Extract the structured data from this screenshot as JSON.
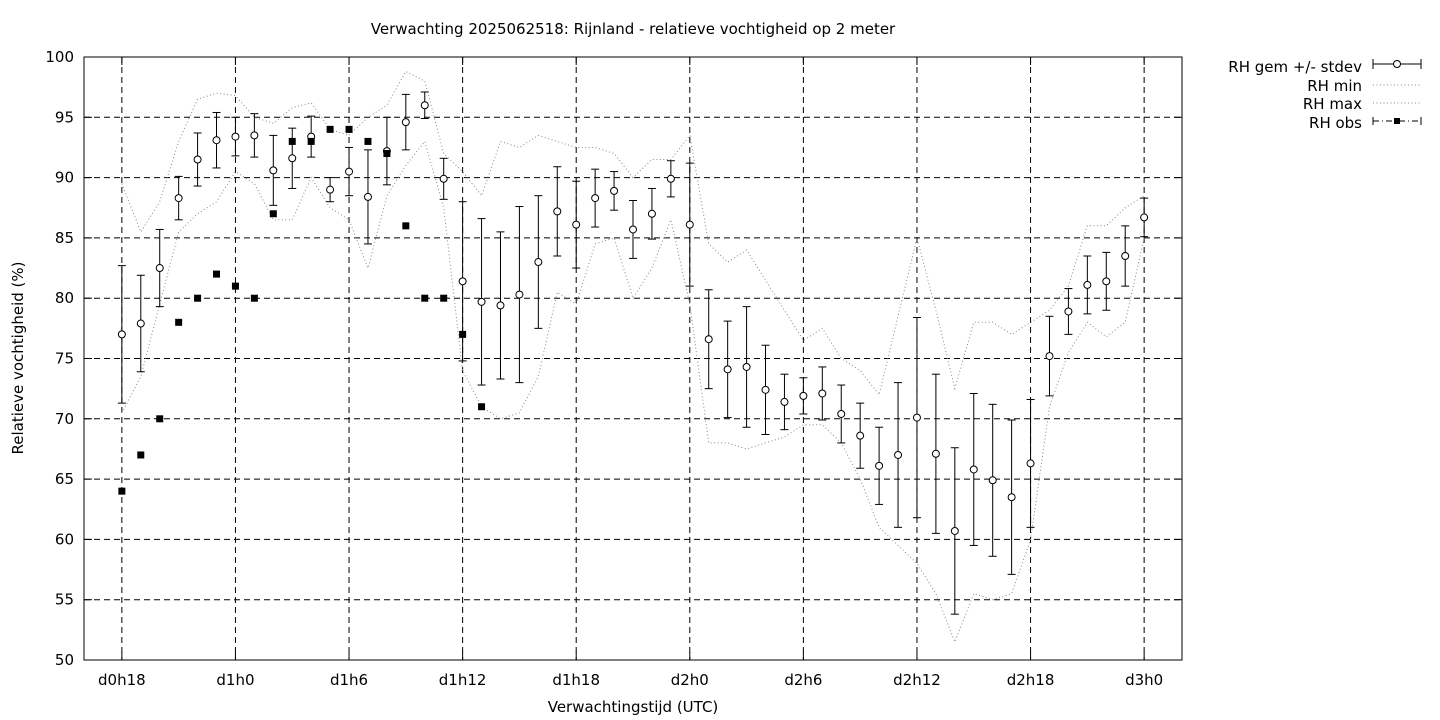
{
  "chart_data": {
    "type": "line",
    "title": "Verwachting 2025062518: Rijnland - relatieve vochtigheid op 2 meter",
    "xlabel": "Verwachtingstijd (UTC)",
    "ylabel": "Relatieve vochtigheid (%)",
    "xlim": [
      16,
      74
    ],
    "ylim": [
      50,
      100
    ],
    "grid": true,
    "legend_position": "top-right outside",
    "x_ticks": [
      {
        "value": 18,
        "label": "d0h18"
      },
      {
        "value": 24,
        "label": "d1h0"
      },
      {
        "value": 30,
        "label": "d1h6"
      },
      {
        "value": 36,
        "label": "d1h12"
      },
      {
        "value": 42,
        "label": "d1h18"
      },
      {
        "value": 48,
        "label": "d2h0"
      },
      {
        "value": 54,
        "label": "d2h6"
      },
      {
        "value": 60,
        "label": "d2h12"
      },
      {
        "value": 66,
        "label": "d2h18"
      },
      {
        "value": 72,
        "label": "d3h0"
      }
    ],
    "y_ticks": [
      50,
      55,
      60,
      65,
      70,
      75,
      80,
      85,
      90,
      95,
      100
    ],
    "series": [
      {
        "name": "RH gem +/- stdev",
        "style": "errorbars-circles",
        "x": [
          18,
          19,
          20,
          21,
          22,
          23,
          24,
          25,
          26,
          27,
          28,
          29,
          30,
          31,
          32,
          33,
          34,
          35,
          36,
          37,
          38,
          39,
          40,
          41,
          42,
          43,
          44,
          45,
          46,
          47,
          48,
          49,
          50,
          51,
          52,
          53,
          54,
          55,
          56,
          57,
          58,
          59,
          60,
          61,
          62,
          63,
          64,
          65,
          66,
          67,
          68,
          69,
          70,
          71,
          72
        ],
        "values": [
          77.0,
          77.9,
          82.5,
          88.3,
          91.5,
          93.1,
          93.4,
          93.5,
          90.6,
          91.6,
          93.4,
          89.0,
          90.5,
          88.4,
          92.2,
          94.6,
          96.0,
          89.9,
          81.4,
          79.7,
          79.4,
          80.3,
          83.0,
          87.2,
          86.1,
          88.3,
          88.9,
          85.7,
          87.0,
          89.9,
          86.1,
          76.6,
          74.1,
          74.3,
          72.4,
          71.4,
          71.9,
          72.1,
          70.4,
          68.6,
          66.1,
          67.0,
          70.1,
          67.1,
          60.7,
          65.8,
          64.9,
          63.5,
          66.3,
          75.2,
          78.9,
          81.1,
          81.4,
          83.5,
          86.7
        ],
        "stdev": [
          5.7,
          4.0,
          3.2,
          1.8,
          2.2,
          2.3,
          1.6,
          1.8,
          2.9,
          2.5,
          1.7,
          1.0,
          2.0,
          3.9,
          2.8,
          2.3,
          1.1,
          1.7,
          6.6,
          6.9,
          6.1,
          7.3,
          5.5,
          3.7,
          3.6,
          2.4,
          1.6,
          2.4,
          2.1,
          1.5,
          5.1,
          4.1,
          4.0,
          5.0,
          3.7,
          2.3,
          1.5,
          2.2,
          2.4,
          2.7,
          3.2,
          6.0,
          8.3,
          6.6,
          6.9,
          6.3,
          6.3,
          6.4,
          5.3,
          3.3,
          1.9,
          2.4,
          2.4,
          2.5,
          1.6
        ]
      },
      {
        "name": "RH min",
        "style": "dotted",
        "x": [
          18,
          19,
          20,
          21,
          22,
          23,
          24,
          25,
          26,
          27,
          28,
          29,
          30,
          31,
          32,
          33,
          34,
          35,
          36,
          37,
          38,
          39,
          40,
          41,
          42,
          43,
          44,
          45,
          46,
          47,
          48,
          49,
          50,
          51,
          52,
          53,
          54,
          55,
          56,
          57,
          58,
          59,
          60,
          61,
          62,
          63,
          64,
          65,
          66,
          67,
          68,
          69,
          70,
          71,
          72
        ],
        "values": [
          70.5,
          73.5,
          79.5,
          85.5,
          87.0,
          88.0,
          90.5,
          89.5,
          86.5,
          86.5,
          90.0,
          87.5,
          86.5,
          82.5,
          88.5,
          91.0,
          93.0,
          87.5,
          74.0,
          71.0,
          70.0,
          70.5,
          73.5,
          80.5,
          79.5,
          84.5,
          85.0,
          80.0,
          82.5,
          86.5,
          79.5,
          68.0,
          68.0,
          67.5,
          68.0,
          68.5,
          69.5,
          69.5,
          68.0,
          65.0,
          61.0,
          59.5,
          58.0,
          55.5,
          51.5,
          55.5,
          55.0,
          55.5,
          60.0,
          71.0,
          75.5,
          78.0,
          76.8,
          78.0,
          85.0
        ]
      },
      {
        "name": "RH max",
        "style": "dotted",
        "x": [
          18,
          19,
          20,
          21,
          22,
          23,
          24,
          25,
          26,
          27,
          28,
          29,
          30,
          31,
          32,
          33,
          34,
          35,
          36,
          37,
          38,
          39,
          40,
          41,
          42,
          43,
          44,
          45,
          46,
          47,
          48,
          49,
          50,
          51,
          52,
          53,
          54,
          55,
          56,
          57,
          58,
          59,
          60,
          61,
          62,
          63,
          64,
          65,
          66,
          67,
          68,
          69,
          70,
          71,
          72
        ],
        "values": [
          89.5,
          85.5,
          88.0,
          93.0,
          96.5,
          97.0,
          96.8,
          95.0,
          94.5,
          95.8,
          96.2,
          94.0,
          93.5,
          95.0,
          96.0,
          98.8,
          98.0,
          92.0,
          90.5,
          88.5,
          93.0,
          92.5,
          93.5,
          93.0,
          92.5,
          92.5,
          92.0,
          90.0,
          91.5,
          91.5,
          93.5,
          84.5,
          83.0,
          84.0,
          81.5,
          79.0,
          76.5,
          77.5,
          75.0,
          74.0,
          72.0,
          78.5,
          85.0,
          79.0,
          72.5,
          78.0,
          78.0,
          77.0,
          78.0,
          79.0,
          81.0,
          86.0,
          86.0,
          87.5,
          88.5
        ]
      },
      {
        "name": "RH obs",
        "style": "squares",
        "x": [
          18,
          19,
          20,
          21,
          22,
          23,
          24,
          25,
          26,
          27,
          28,
          29,
          30,
          31,
          32,
          33,
          34,
          35,
          36,
          37
        ],
        "values": [
          64,
          67,
          70,
          78,
          80,
          82,
          81,
          80,
          87,
          93,
          93,
          94,
          94,
          93,
          92,
          86,
          80,
          80,
          77,
          71
        ]
      }
    ]
  }
}
